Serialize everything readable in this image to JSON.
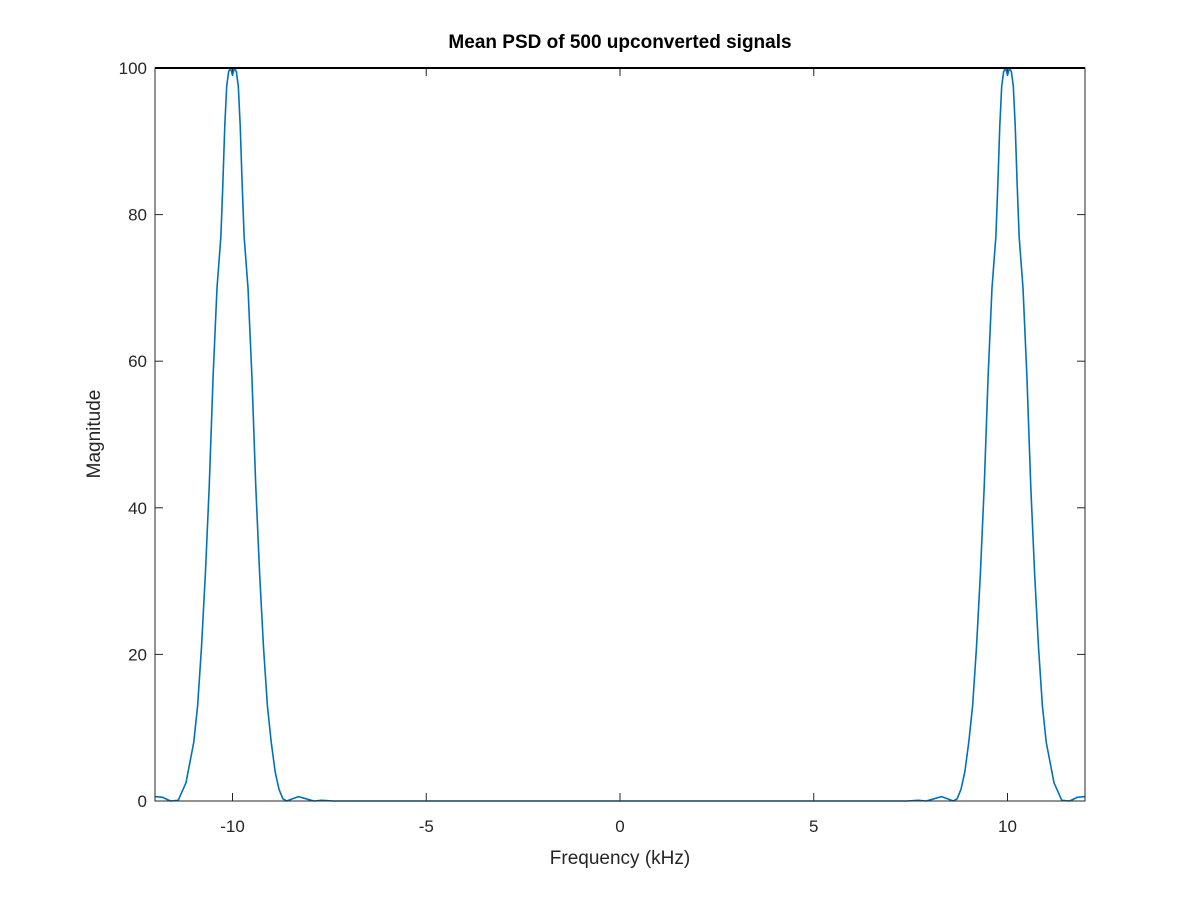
{
  "chart_data": {
    "type": "line",
    "title": "Mean PSD of 500 upconverted signals",
    "xlabel": "Frequency (kHz)",
    "ylabel": "Magnitude",
    "xlim": [
      -12,
      12
    ],
    "ylim": [
      0,
      100
    ],
    "grid": false,
    "x_ticks": [
      -10,
      -5,
      0,
      5,
      10
    ],
    "x_tick_labels": [
      "-10",
      "-5",
      "0",
      "5",
      "10"
    ],
    "y_ticks": [
      0,
      20,
      40,
      60,
      80,
      100
    ],
    "y_tick_labels": [
      "0",
      "20",
      "40",
      "60",
      "80",
      "100"
    ],
    "series": [
      {
        "color": "#0072bd",
        "x": [
          -12.0,
          -11.8,
          -11.6,
          -11.4,
          -11.2,
          -11.0,
          -10.9,
          -10.8,
          -10.7,
          -10.6,
          -10.5,
          -10.4,
          -10.3,
          -10.25,
          -10.2,
          -10.15,
          -10.1,
          -10.05,
          -10.0,
          -9.95,
          -9.9,
          -9.85,
          -9.8,
          -9.75,
          -9.7,
          -9.6,
          -9.5,
          -9.4,
          -9.3,
          -9.2,
          -9.1,
          -9.0,
          -8.9,
          -8.8,
          -8.7,
          -8.6,
          -8.5,
          -8.3,
          -8.1,
          -7.9,
          -7.7,
          -7.4,
          -7.0,
          -6.0,
          0.0,
          6.0,
          7.0,
          7.4,
          7.7,
          7.9,
          8.1,
          8.3,
          8.5,
          8.6,
          8.7,
          8.8,
          8.9,
          9.0,
          9.1,
          9.2,
          9.3,
          9.4,
          9.5,
          9.6,
          9.7,
          9.75,
          9.8,
          9.85,
          9.9,
          9.95,
          10.0,
          10.05,
          10.1,
          10.15,
          10.2,
          10.25,
          10.3,
          10.4,
          10.5,
          10.6,
          10.7,
          10.8,
          10.9,
          11.0,
          11.2,
          11.4,
          11.6,
          11.8,
          12.0
        ],
        "y": [
          0.6,
          0.5,
          0.0,
          0.1,
          2.5,
          8.0,
          13.0,
          21.0,
          31.0,
          43.0,
          58.0,
          70.0,
          77.0,
          84.0,
          92.0,
          97.5,
          99.5,
          100.0,
          99.0,
          100.0,
          99.5,
          97.5,
          92.0,
          84.0,
          77.0,
          70.0,
          58.0,
          43.0,
          31.0,
          21.0,
          13.0,
          8.0,
          4.0,
          1.6,
          0.3,
          0.0,
          0.2,
          0.6,
          0.3,
          0.0,
          0.1,
          0.0,
          0.0,
          0.0,
          0.0,
          0.0,
          0.0,
          0.0,
          0.1,
          0.0,
          0.3,
          0.6,
          0.2,
          0.0,
          0.3,
          1.6,
          4.0,
          8.0,
          13.0,
          21.0,
          31.0,
          43.0,
          58.0,
          70.0,
          77.0,
          84.0,
          92.0,
          97.5,
          99.5,
          100.0,
          99.0,
          100.0,
          99.5,
          97.5,
          92.0,
          84.0,
          77.0,
          70.0,
          58.0,
          43.0,
          31.0,
          21.0,
          13.0,
          8.0,
          2.5,
          0.1,
          0.0,
          0.5,
          0.6
        ]
      }
    ]
  }
}
